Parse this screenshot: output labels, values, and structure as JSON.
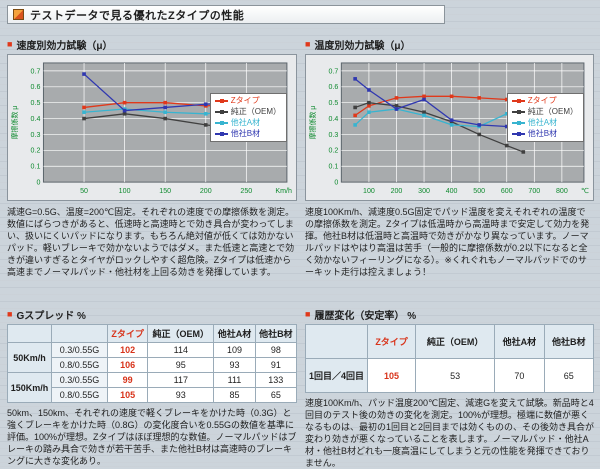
{
  "header": {
    "title": "テストデータで見る優れたZタイプの性能"
  },
  "speed_section": {
    "title": "速度別効力試験（μ）",
    "description": "減速G=0.5G、温度=200℃固定。それぞれの速度での摩擦係数を測定。数値にばらつきがあると、低速時と高速時とで効き具合が変わってしまい、扱いにくいパッドになります。もちろん絶対値が低くては効かないパッド。軽いブレーキで効かないようではダメ。また低速と高速とで効きが違いすぎるとタイヤがロックしやすく超危険。Zタイプは低速から高速までノーマルパッド・他社材を上回る効きを発揮しています。"
  },
  "temp_section": {
    "title": "温度別効力試験（μ）",
    "description": "速度100Km/h、減速度0.5G固定でパッド温度を変えそれぞれの温度での摩擦係数を測定。Zタイプは低温時から高温時まで安定して効力を発揮。他社B材は低温時と高温時で効きがかなり異なっています。ノーマルパッドはやはり高温は苦手（一般的に摩擦係数が0.2以下になると全く効かないフィーリングになる）。※くれぐれもノーマルパッドでのサーキット走行は控えましょう！"
  },
  "tables": {
    "g_spread": {
      "title": "Gスプレッド %",
      "columns": [
        "Zタイプ",
        "純正（OEM）",
        "他社A材",
        "他社B材"
      ],
      "groups": [
        {
          "speed": "50Km/h",
          "rows": [
            {
              "g": "0.3/0.55G",
              "z": "102",
              "oem": "114",
              "a": "109",
              "b": "98"
            },
            {
              "g": "0.8/0.55G",
              "z": "106",
              "oem": "95",
              "a": "93",
              "b": "91"
            }
          ]
        },
        {
          "speed": "150Km/h",
          "rows": [
            {
              "g": "0.3/0.55G",
              "z": "99",
              "oem": "117",
              "a": "111",
              "b": "133"
            },
            {
              "g": "0.8/0.55G",
              "z": "105",
              "oem": "93",
              "a": "85",
              "b": "65"
            }
          ]
        }
      ],
      "note": "50km、150km、それぞれの速度で軽くブレーキをかけた時（0.3G）と強くブレーキをかけた時（0.8G）の変化度合いを0.55Gの数値を基準に評価。100%が理想。Zタイプはほぼ理想的な数値。ノーマルパッドはブレーキの踏み具合で効きが若干苦手、また他社B材は高速時のブレーキングに大きな変化あり。"
    },
    "stability": {
      "title": "履歴変化（安定率） %",
      "columns": [
        "Zタイプ",
        "純正（OEM）",
        "他社A材",
        "他社B材"
      ],
      "row_label": "1回目／4回目",
      "values": {
        "z": "105",
        "oem": "53",
        "a": "70",
        "b": "65"
      },
      "note": "速度100Km/h、パッド温度200℃固定、減速Gを変えて試験。新品時と4回目のテスト後の効きの変化を測定。100%が理想。極端に数値が悪くなるものは、最初の1回目と2回目までは効くものの、その後効き具合が変わり効きが悪くなっていることを表します。ノーマルパッド・他社A材・他社B材どれも一度高温にしてしまうと元の性能を発揮できておりません。"
    }
  },
  "chart_data": [
    {
      "id": "speed",
      "type": "line",
      "title": "速度別効力試験（μ）",
      "xlabel": "Km/h",
      "ylabel": "摩擦係数 μ",
      "xlim": [
        0,
        300
      ],
      "ylim": [
        0,
        0.75
      ],
      "xticks": [
        50,
        100,
        150,
        200,
        250
      ],
      "yticks": [
        0.1,
        0.2,
        0.3,
        0.4,
        0.5,
        0.6,
        0.7
      ],
      "grid": true,
      "legend_position": "right",
      "series": [
        {
          "name": "Zタイプ",
          "color": "#e0391b",
          "points": [
            [
              50,
              0.47
            ],
            [
              100,
              0.5
            ],
            [
              150,
              0.5
            ],
            [
              200,
              0.48
            ],
            [
              235,
              0.49
            ]
          ]
        },
        {
          "name": "純正（OEM）",
          "color": "#404040",
          "points": [
            [
              50,
              0.4
            ],
            [
              100,
              0.43
            ],
            [
              150,
              0.4
            ],
            [
              200,
              0.36
            ],
            [
              235,
              0.34
            ]
          ]
        },
        {
          "name": "他社A材",
          "color": "#38b4d0",
          "points": [
            [
              50,
              0.44
            ],
            [
              100,
              0.46
            ],
            [
              150,
              0.44
            ],
            [
              200,
              0.43
            ],
            [
              235,
              0.45
            ]
          ]
        },
        {
          "name": "他社B材",
          "color": "#3038b0",
          "points": [
            [
              50,
              0.68
            ],
            [
              100,
              0.45
            ],
            [
              150,
              0.47
            ],
            [
              200,
              0.49
            ],
            [
              235,
              0.5
            ]
          ]
        }
      ]
    },
    {
      "id": "temp",
      "type": "line",
      "title": "温度別効力試験（μ）",
      "xlabel": "℃",
      "ylabel": "摩擦係数 μ",
      "xlim": [
        0,
        880
      ],
      "ylim": [
        0,
        0.75
      ],
      "xticks": [
        100,
        200,
        300,
        400,
        500,
        600,
        700,
        800
      ],
      "yticks": [
        0.1,
        0.2,
        0.3,
        0.4,
        0.5,
        0.6,
        0.7
      ],
      "grid": true,
      "legend_position": "right",
      "series": [
        {
          "name": "Zタイプ",
          "color": "#e0391b",
          "points": [
            [
              50,
              0.42
            ],
            [
              100,
              0.48
            ],
            [
              200,
              0.53
            ],
            [
              300,
              0.54
            ],
            [
              400,
              0.54
            ],
            [
              500,
              0.53
            ],
            [
              600,
              0.52
            ],
            [
              700,
              0.5
            ],
            [
              760,
              0.49
            ]
          ]
        },
        {
          "name": "純正（OEM）",
          "color": "#404040",
          "points": [
            [
              50,
              0.47
            ],
            [
              100,
              0.5
            ],
            [
              200,
              0.48
            ],
            [
              300,
              0.44
            ],
            [
              400,
              0.38
            ],
            [
              500,
              0.3
            ],
            [
              600,
              0.23
            ],
            [
              660,
              0.19
            ]
          ]
        },
        {
          "name": "他社A材",
          "color": "#38b4d0",
          "points": [
            [
              50,
              0.36
            ],
            [
              100,
              0.44
            ],
            [
              200,
              0.46
            ],
            [
              300,
              0.42
            ],
            [
              400,
              0.36
            ],
            [
              500,
              0.35
            ],
            [
              600,
              0.43
            ],
            [
              700,
              0.42
            ]
          ]
        },
        {
          "name": "他社B材",
          "color": "#3038b0",
          "points": [
            [
              50,
              0.65
            ],
            [
              100,
              0.58
            ],
            [
              200,
              0.46
            ],
            [
              300,
              0.52
            ],
            [
              400,
              0.39
            ],
            [
              500,
              0.36
            ],
            [
              600,
              0.35
            ],
            [
              700,
              0.33
            ]
          ]
        }
      ]
    }
  ],
  "colors": {
    "accent_red": "#e0391b",
    "axis_green": "#0f8a2f",
    "oem_dark": "#404040",
    "a_cyan": "#38b4d0",
    "b_blue": "#3038b0"
  }
}
